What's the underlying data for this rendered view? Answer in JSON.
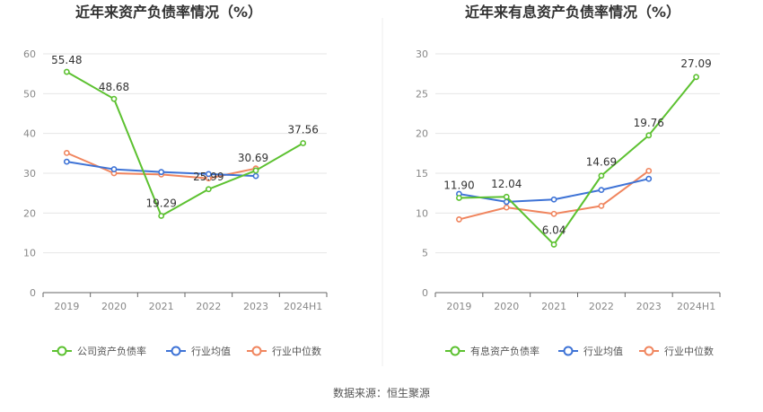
{
  "source_label": "数据来源：恒生聚源",
  "chart_data": [
    {
      "type": "line",
      "title": "近年来资产负债率情况（%）",
      "categories": [
        "2019",
        "2020",
        "2021",
        "2022",
        "2023",
        "2024H1"
      ],
      "ylim": [
        0,
        60
      ],
      "yticks": [
        0,
        10,
        20,
        30,
        40,
        50,
        60
      ],
      "grid": true,
      "legend_position": "bottom",
      "series": [
        {
          "name": "公司资产负债率",
          "color": "#5cc130",
          "values": [
            55.48,
            48.68,
            19.29,
            25.99,
            30.69,
            37.56
          ],
          "labels": [
            "55.48",
            "48.68",
            "19.29",
            "25.99",
            "30.69",
            "37.56"
          ]
        },
        {
          "name": "行业均值",
          "color": "#3e73d6",
          "values": [
            32.9,
            31.0,
            30.3,
            29.8,
            29.3,
            null
          ]
        },
        {
          "name": "行业中位数",
          "color": "#f0855e",
          "values": [
            35.1,
            30.0,
            29.7,
            28.7,
            31.2,
            null
          ]
        }
      ]
    },
    {
      "type": "line",
      "title": "近年来有息资产负债率情况（%）",
      "categories": [
        "2019",
        "2020",
        "2021",
        "2022",
        "2023",
        "2024H1"
      ],
      "ylim": [
        0,
        30
      ],
      "yticks": [
        0,
        5,
        10,
        15,
        20,
        25,
        30
      ],
      "grid": true,
      "legend_position": "bottom",
      "series": [
        {
          "name": "有息资产负债率",
          "color": "#5cc130",
          "values": [
            11.9,
            12.04,
            6.04,
            14.69,
            19.76,
            27.09
          ],
          "labels": [
            "11.90",
            "12.04",
            "6.04",
            "14.69",
            "19.76",
            "27.09"
          ]
        },
        {
          "name": "行业均值",
          "color": "#3e73d6",
          "values": [
            12.4,
            11.4,
            11.7,
            12.9,
            14.3,
            null
          ]
        },
        {
          "name": "行业中位数",
          "color": "#f0855e",
          "values": [
            9.2,
            10.7,
            9.9,
            10.9,
            15.3,
            null
          ]
        }
      ]
    }
  ]
}
